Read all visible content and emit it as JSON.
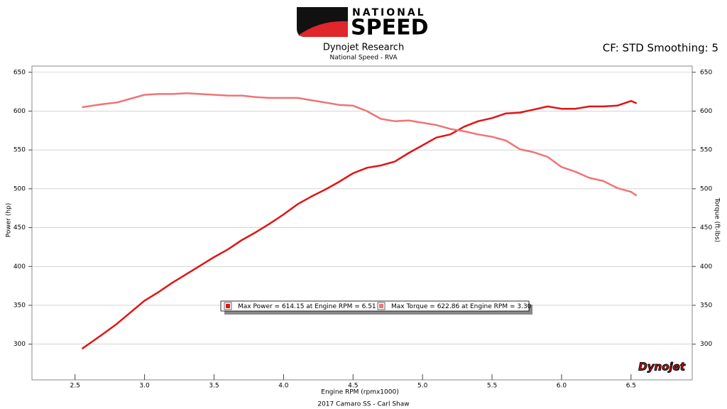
{
  "logo": {
    "top": "NATIONAL",
    "bottom": "SPEED"
  },
  "chart_data": {
    "type": "line",
    "title": "Dynojet Research",
    "subtitle": "National Speed - RVA",
    "corner_note": "CF: STD Smoothing: 5",
    "footer": "2017 Camaro SS - Carl Shaw",
    "watermark": "Dynojet",
    "x_label": "Engine RPM (rpmx1000)",
    "y_label": "Power (hp)",
    "y2_label": "Torque (ft-lbs)",
    "xlim": [
      2.19,
      6.94
    ],
    "xticks": [
      2.5,
      {
        "value": 3,
        "label": "3.0"
      },
      3.5,
      {
        "value": 4,
        "label": "4.0"
      },
      4.5,
      {
        "value": 5,
        "label": "5.0"
      },
      5.5,
      {
        "value": 6,
        "label": "6.0"
      },
      6.5
    ],
    "ylim": [
      254,
      658
    ],
    "yticks": [
      300,
      350,
      400,
      450,
      500,
      550,
      600,
      650
    ],
    "y2lim": [
      254,
      658
    ],
    "y2ticks": [
      300,
      350,
      400,
      450,
      500,
      550,
      600,
      650
    ],
    "grid": true,
    "x": [
      2.55,
      2.7,
      2.8,
      2.9,
      3.0,
      3.1,
      3.2,
      3.3,
      3.4,
      3.5,
      3.6,
      3.7,
      3.8,
      3.9,
      4.0,
      4.1,
      4.2,
      4.3,
      4.4,
      4.5,
      4.6,
      4.7,
      4.8,
      4.9,
      5.0,
      5.1,
      5.2,
      5.3,
      5.4,
      5.5,
      5.6,
      5.7,
      5.8,
      5.9,
      6.0,
      6.1,
      6.2,
      6.3,
      6.4,
      6.5,
      6.54
    ],
    "series": [
      {
        "name": "Max Power = 614.15 at Engine RPM = 6.51",
        "color": "#e01414",
        "values": [
          294,
          313,
          326,
          341,
          356,
          367,
          379,
          390,
          401,
          412,
          422,
          434,
          444,
          455,
          467,
          480,
          490,
          499,
          509,
          520,
          527,
          530,
          535,
          546,
          556,
          566,
          570,
          580,
          587,
          591,
          597,
          598,
          602,
          606,
          603,
          603,
          606,
          606,
          607,
          613,
          610
        ]
      },
      {
        "name": "Max Torque = 622.86 at Engine RPM = 3.30",
        "color": "#f07474",
        "axis": "y2",
        "values": [
          605,
          609,
          611,
          616,
          621,
          622,
          622,
          623,
          622,
          621,
          620,
          620,
          618,
          617,
          617,
          617,
          614,
          611,
          608,
          607,
          600,
          590,
          587,
          588,
          585,
          582,
          577,
          574,
          570,
          567,
          562,
          551,
          547,
          541,
          528,
          522,
          514,
          510,
          501,
          496,
          491
        ]
      }
    ]
  }
}
